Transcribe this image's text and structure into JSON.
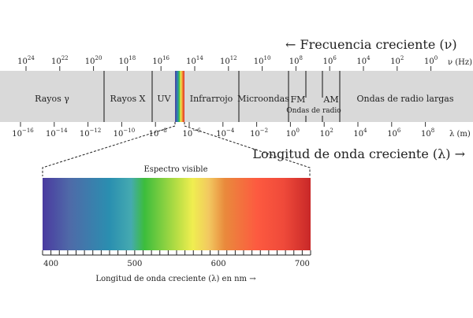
{
  "frequency_axis": {
    "title": "← Frecuencia creciente (ν)",
    "unit": "ν (Hz)",
    "exponents": [
      "24",
      "22",
      "20",
      "18",
      "16",
      "14",
      "12",
      "10",
      "8",
      "6",
      "4",
      "2",
      "0"
    ]
  },
  "wavelength_axis": {
    "title": "Longitud de onda creciente (λ) →",
    "unit": "λ (m)",
    "exponents": [
      "−16",
      "−14",
      "−12",
      "−10",
      "−8",
      "−6",
      "−4",
      "−2",
      "0",
      "2",
      "4",
      "6",
      "8"
    ]
  },
  "regions": [
    {
      "label": "Rayos γ"
    },
    {
      "label": "Rayos X"
    },
    {
      "label": "UV"
    },
    {
      "label": "Infrarrojo"
    },
    {
      "label": "Microondas"
    },
    {
      "label": "FM"
    },
    {
      "label": "AM"
    },
    {
      "label": "Ondas de radio largas"
    }
  ],
  "radio_label": "Ondas de radio",
  "visible": {
    "title": "Espectro visible",
    "tick_labels": [
      "400",
      "500",
      "600",
      "700"
    ],
    "axis_title": "Longitud de onda creciente (λ) en nm →",
    "range_nm": [
      390,
      710
    ]
  },
  "colors": {
    "band": "#d9d9d9",
    "divider": "#333333"
  }
}
